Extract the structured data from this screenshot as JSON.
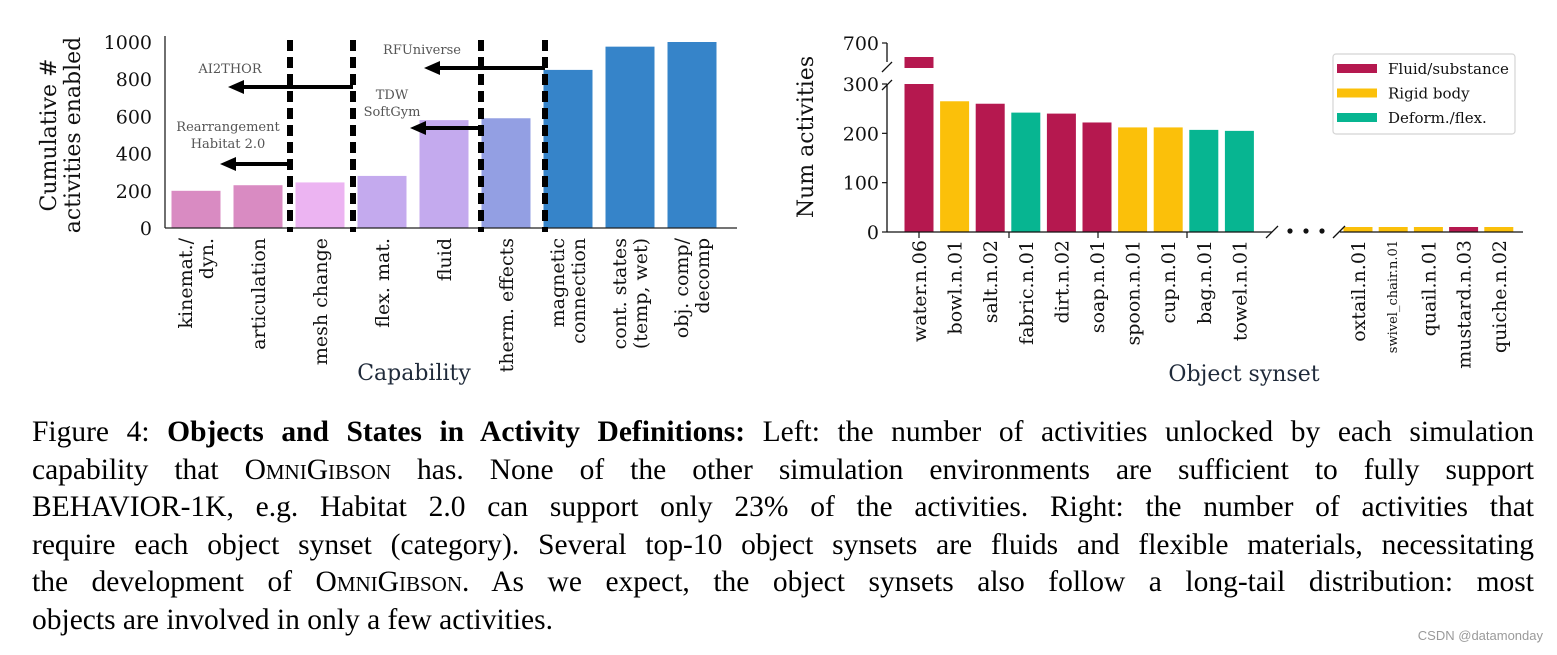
{
  "chart_data": [
    {
      "type": "bar",
      "title": "",
      "xlabel": "Capability",
      "ylabel": "Cumulative # activities enabled",
      "ylabel_lines": [
        "Cumulative #",
        "activities enabled"
      ],
      "ylim": [
        0,
        1000
      ],
      "yticks": [
        0,
        200,
        400,
        600,
        800,
        1000
      ],
      "grid": false,
      "categories": [
        "kinemat./\ndyn.",
        "articulation",
        "mesh change",
        "flex. mat.",
        "fluid",
        "therm. effects",
        "magnetic\nconnection",
        "cont. states\n(temp, wet)",
        "obj. comp/\ndecomp"
      ],
      "values": [
        200,
        230,
        245,
        280,
        580,
        590,
        850,
        975,
        1000
      ],
      "colors": [
        "#d98bc2",
        "#d98bc2",
        "#ecb4f2",
        "#c4aaee",
        "#c4aaee",
        "#939fe3",
        "#3684c9",
        "#3684c9",
        "#3684c9"
      ],
      "dividers_after_index": [
        1,
        3,
        5
      ],
      "annotations": [
        {
          "text": "AI2THOR",
          "arrow_from_divider": 3,
          "arrow_to_category": 1,
          "arrow_at_value": 760
        },
        {
          "text": "Rearrangement\nHabitat 2.0",
          "arrow_from_divider": 1,
          "arrow_to_category": 0,
          "arrow_at_value": 350
        },
        {
          "text": "TDW\nSoftGym",
          "arrow_from_divider": 5,
          "arrow_to_category": 4,
          "arrow_at_value": 545
        },
        {
          "text": "RFUniverse",
          "arrow_from_divider": 7,
          "arrow_to_category": 4,
          "arrow_at_value": 870
        }
      ],
      "annotation_color": "#555555"
    },
    {
      "type": "bar",
      "title": "",
      "xlabel": "Object synset",
      "ylabel": "Num activities",
      "ylim": [
        0,
        700
      ],
      "axis_break": [
        300,
        620
      ],
      "yticks": [
        0,
        100,
        200,
        300,
        700
      ],
      "grid": false,
      "legend": {
        "position": "top-right",
        "entries": [
          {
            "label": "Fluid/substance",
            "color": "#b5184f"
          },
          {
            "label": "Rigid body",
            "color": "#fbc00a"
          },
          {
            "label": "Deform./flex.",
            "color": "#07b591"
          }
        ]
      },
      "categories": [
        "water.n.06",
        "bowl.n.01",
        "salt.n.02",
        "fabric.n.01",
        "dirt.n.02",
        "soap.n.01",
        "spoon.n.01",
        "cup.n.01",
        "bag.n.01",
        "towel.n.01",
        "oxtail.n.01",
        "swivel_chair.n.01",
        "quail.n.01",
        "mustard.n.03",
        "quiche.n.02"
      ],
      "values": [
        660,
        265,
        260,
        242,
        240,
        222,
        212,
        212,
        207,
        205,
        1,
        1,
        1,
        1,
        1
      ],
      "groups": [
        "Fluid/substance",
        "Rigid body",
        "Fluid/substance",
        "Deform./flex.",
        "Fluid/substance",
        "Fluid/substance",
        "Rigid body",
        "Rigid body",
        "Deform./flex.",
        "Deform./flex.",
        "Rigid body",
        "Rigid body",
        "Rigid body",
        "Fluid/substance",
        "Rigid body"
      ],
      "x_break_after_index": 9,
      "x_break_symbol": "• • •"
    }
  ],
  "caption": {
    "lines": [
      [
        {
          "t": "Figure 4: "
        },
        {
          "t": "Objects and States in Activity Definitions:",
          "b": true
        },
        {
          "t": " Left: the number of activities unlocked by each simulation"
        }
      ],
      [
        {
          "t": "capability that "
        },
        {
          "t": "OmniGibson",
          "sc": true
        },
        {
          "t": " has. None of the other simulation environments are sufficient to fully support"
        }
      ],
      [
        {
          "t": "BEHAVIOR-1K, e.g. Habitat 2.0 can support only 23% of the activities. Right: the number of activities that"
        }
      ],
      [
        {
          "t": "require each object synset (category). Several top-10 object synsets are fluids and flexible materials, necessitating"
        }
      ],
      [
        {
          "t": "the development of "
        },
        {
          "t": "OmniGibson",
          "sc": true
        },
        {
          "t": ". As we expect, the object synsets also follow a long-tail distribution: most"
        }
      ],
      [
        {
          "t": "objects are involved in only a few activities."
        }
      ]
    ]
  },
  "watermark": "CSDN @datamonday"
}
